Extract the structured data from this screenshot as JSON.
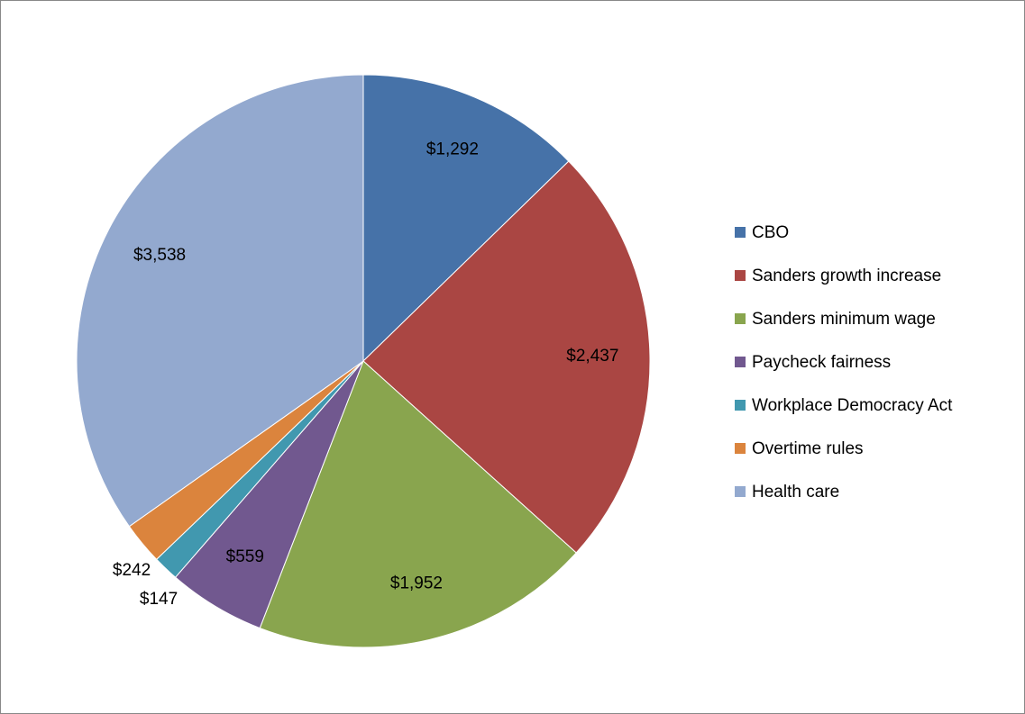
{
  "chart_data": {
    "type": "pie",
    "categories": [
      "CBO",
      "Sanders growth increase",
      "Sanders minimum wage",
      "Paycheck fairness",
      "Workplace Democracy Act",
      "Overtime rules",
      "Health care"
    ],
    "values": [
      1292,
      2437,
      1952,
      559,
      147,
      242,
      3538
    ],
    "value_labels": [
      "$1,292",
      "$2,437",
      "$1,952",
      "$559",
      "$147",
      "$242",
      "$3,538"
    ],
    "colors": [
      "#4672a8",
      "#aa4643",
      "#89a54e",
      "#71588f",
      "#4198af",
      "#db843d",
      "#93a9cf"
    ],
    "legend": "right"
  }
}
